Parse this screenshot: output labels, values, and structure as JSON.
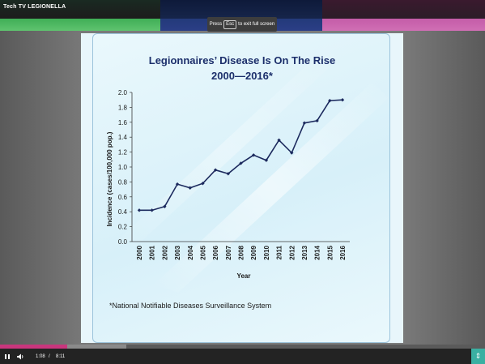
{
  "app": {
    "title": "Tech TV LEGIONELLA",
    "fullscreen_hint_prefix": "Press",
    "fullscreen_hint_key": "Esc",
    "fullscreen_hint_suffix": "to exit full screen"
  },
  "player": {
    "current_time": "1:08",
    "separator": "/",
    "total_time": "8:11",
    "progress": 0.139,
    "buffered": 0.26
  },
  "slide": {
    "title_line1": "Legionnaires’ Disease Is On The Rise",
    "title_line2": "2000—2016*",
    "footnote": "*National Notifiable Diseases Surveillance System"
  },
  "chart_data": {
    "type": "line",
    "title": "Legionnaires’ Disease Is On The Rise 2000—2016*",
    "xlabel": "Year",
    "ylabel": "Incidence (cases/100,000 pop.)",
    "ylim": [
      0,
      2.0
    ],
    "yticks": [
      "0.0",
      "0.2",
      "0.4",
      "0.6",
      "0.8",
      "1.0",
      "1.2",
      "1.4",
      "1.6",
      "1.8",
      "2.0"
    ],
    "categories": [
      "2000",
      "2001",
      "2002",
      "2003",
      "2004",
      "2005",
      "2006",
      "2007",
      "2008",
      "2009",
      "2010",
      "2011",
      "2012",
      "2013",
      "2014",
      "2015",
      "2016"
    ],
    "series": [
      {
        "values": [
          0.42,
          0.42,
          0.47,
          0.77,
          0.72,
          0.78,
          0.96,
          0.91,
          1.05,
          1.16,
          1.09,
          1.36,
          1.19,
          1.59,
          1.62,
          1.89,
          1.9
        ],
        "color": "#1c2a5e"
      }
    ],
    "grid": false,
    "legend": "none"
  }
}
